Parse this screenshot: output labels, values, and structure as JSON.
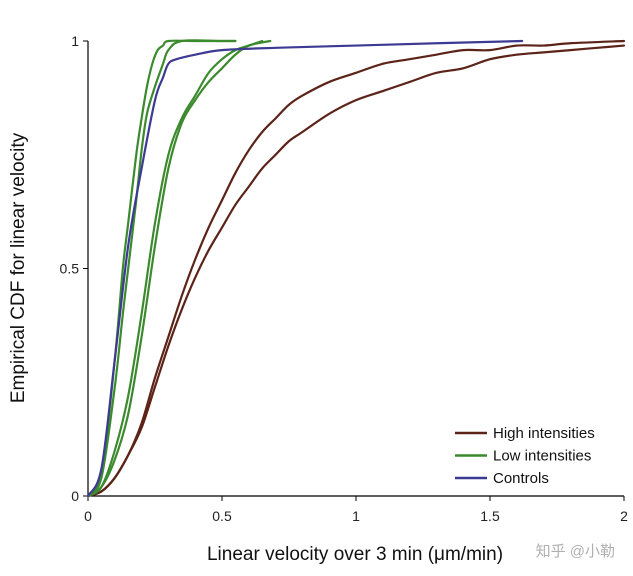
{
  "chart_data": {
    "type": "line",
    "title": "",
    "xlabel": "Linear velocity over 3 min (μm/min)",
    "ylabel": "Empirical CDF for linear velocity",
    "xlim": [
      0,
      2
    ],
    "ylim": [
      0,
      1
    ],
    "xticks": [
      "0",
      "0.5",
      "1",
      "1.5",
      "2"
    ],
    "yticks": [
      "0",
      "0.5",
      "1"
    ],
    "grid": false,
    "legend_position": "bottom-right",
    "series": [
      {
        "name": "High intensities",
        "color": "#5c2318",
        "values": [
          [
            0,
            0
          ],
          [
            0.05,
            0.01
          ],
          [
            0.1,
            0.04
          ],
          [
            0.15,
            0.09
          ],
          [
            0.2,
            0.16
          ],
          [
            0.25,
            0.26
          ],
          [
            0.3,
            0.35
          ],
          [
            0.35,
            0.44
          ],
          [
            0.4,
            0.52
          ],
          [
            0.45,
            0.59
          ],
          [
            0.5,
            0.65
          ],
          [
            0.55,
            0.71
          ],
          [
            0.6,
            0.76
          ],
          [
            0.65,
            0.8
          ],
          [
            0.7,
            0.83
          ],
          [
            0.75,
            0.86
          ],
          [
            0.8,
            0.88
          ],
          [
            0.9,
            0.91
          ],
          [
            1.0,
            0.93
          ],
          [
            1.1,
            0.95
          ],
          [
            1.2,
            0.96
          ],
          [
            1.3,
            0.97
          ],
          [
            1.4,
            0.98
          ],
          [
            1.5,
            0.98
          ],
          [
            1.6,
            0.99
          ],
          [
            1.7,
            0.99
          ],
          [
            1.8,
            0.995
          ],
          [
            2.0,
            1.0
          ]
        ]
      },
      {
        "name": "High intensities",
        "color": "#5c2318",
        "values": [
          [
            0,
            0
          ],
          [
            0.05,
            0.01
          ],
          [
            0.1,
            0.04
          ],
          [
            0.15,
            0.09
          ],
          [
            0.2,
            0.15
          ],
          [
            0.25,
            0.24
          ],
          [
            0.3,
            0.33
          ],
          [
            0.35,
            0.41
          ],
          [
            0.4,
            0.48
          ],
          [
            0.45,
            0.54
          ],
          [
            0.5,
            0.59
          ],
          [
            0.55,
            0.64
          ],
          [
            0.6,
            0.68
          ],
          [
            0.65,
            0.72
          ],
          [
            0.7,
            0.75
          ],
          [
            0.75,
            0.78
          ],
          [
            0.8,
            0.8
          ],
          [
            0.9,
            0.84
          ],
          [
            1.0,
            0.87
          ],
          [
            1.1,
            0.89
          ],
          [
            1.2,
            0.91
          ],
          [
            1.3,
            0.93
          ],
          [
            1.4,
            0.94
          ],
          [
            1.5,
            0.96
          ],
          [
            1.6,
            0.97
          ],
          [
            1.7,
            0.975
          ],
          [
            1.8,
            0.98
          ],
          [
            1.9,
            0.985
          ],
          [
            2.0,
            0.99
          ]
        ]
      },
      {
        "name": "Low intensities",
        "color": "#3c8a2e",
        "values": [
          [
            0,
            0
          ],
          [
            0.05,
            0.05
          ],
          [
            0.1,
            0.3
          ],
          [
            0.13,
            0.5
          ],
          [
            0.15,
            0.6
          ],
          [
            0.18,
            0.75
          ],
          [
            0.2,
            0.83
          ],
          [
            0.22,
            0.9
          ],
          [
            0.24,
            0.95
          ],
          [
            0.26,
            0.98
          ],
          [
            0.28,
            0.99
          ],
          [
            0.3,
            1.0
          ],
          [
            0.4,
            1.0
          ],
          [
            0.55,
            1.0
          ]
        ]
      },
      {
        "name": "Low intensities",
        "color": "#3c8a2e",
        "values": [
          [
            0,
            0
          ],
          [
            0.05,
            0.04
          ],
          [
            0.1,
            0.24
          ],
          [
            0.13,
            0.4
          ],
          [
            0.15,
            0.5
          ],
          [
            0.18,
            0.65
          ],
          [
            0.2,
            0.76
          ],
          [
            0.22,
            0.84
          ],
          [
            0.25,
            0.9
          ],
          [
            0.28,
            0.95
          ],
          [
            0.3,
            0.98
          ],
          [
            0.35,
            1.0
          ],
          [
            0.5,
            1.0
          ],
          [
            0.55,
            1.0
          ]
        ]
      },
      {
        "name": "Low intensities",
        "color": "#3c8a2e",
        "values": [
          [
            0,
            0
          ],
          [
            0.05,
            0.02
          ],
          [
            0.1,
            0.1
          ],
          [
            0.15,
            0.22
          ],
          [
            0.2,
            0.4
          ],
          [
            0.25,
            0.6
          ],
          [
            0.3,
            0.75
          ],
          [
            0.35,
            0.83
          ],
          [
            0.4,
            0.88
          ],
          [
            0.45,
            0.93
          ],
          [
            0.5,
            0.96
          ],
          [
            0.55,
            0.98
          ],
          [
            0.6,
            0.99
          ],
          [
            0.65,
            1.0
          ]
        ]
      },
      {
        "name": "Low intensities",
        "color": "#3c8a2e",
        "values": [
          [
            0,
            0
          ],
          [
            0.05,
            0.02
          ],
          [
            0.1,
            0.08
          ],
          [
            0.15,
            0.18
          ],
          [
            0.2,
            0.35
          ],
          [
            0.25,
            0.55
          ],
          [
            0.3,
            0.72
          ],
          [
            0.35,
            0.82
          ],
          [
            0.4,
            0.87
          ],
          [
            0.45,
            0.91
          ],
          [
            0.5,
            0.94
          ],
          [
            0.55,
            0.97
          ],
          [
            0.6,
            0.99
          ],
          [
            0.68,
            1.0
          ]
        ]
      },
      {
        "name": "Controls",
        "color": "#3c3a92",
        "values": [
          [
            0,
            0
          ],
          [
            0.05,
            0.06
          ],
          [
            0.1,
            0.3
          ],
          [
            0.15,
            0.55
          ],
          [
            0.2,
            0.72
          ],
          [
            0.25,
            0.87
          ],
          [
            0.28,
            0.92
          ],
          [
            0.3,
            0.95
          ],
          [
            0.33,
            0.96
          ],
          [
            0.4,
            0.97
          ],
          [
            0.5,
            0.98
          ],
          [
            0.7,
            0.985
          ],
          [
            1.0,
            0.99
          ],
          [
            1.3,
            0.995
          ],
          [
            1.62,
            1.0
          ]
        ]
      }
    ],
    "legend": [
      {
        "label": "High intensities",
        "color": "#5c2318"
      },
      {
        "label": "Low intensities",
        "color": "#3c8a2e"
      },
      {
        "label": "Controls",
        "color": "#3c3a92"
      }
    ]
  },
  "watermark": "知乎 @小勒"
}
